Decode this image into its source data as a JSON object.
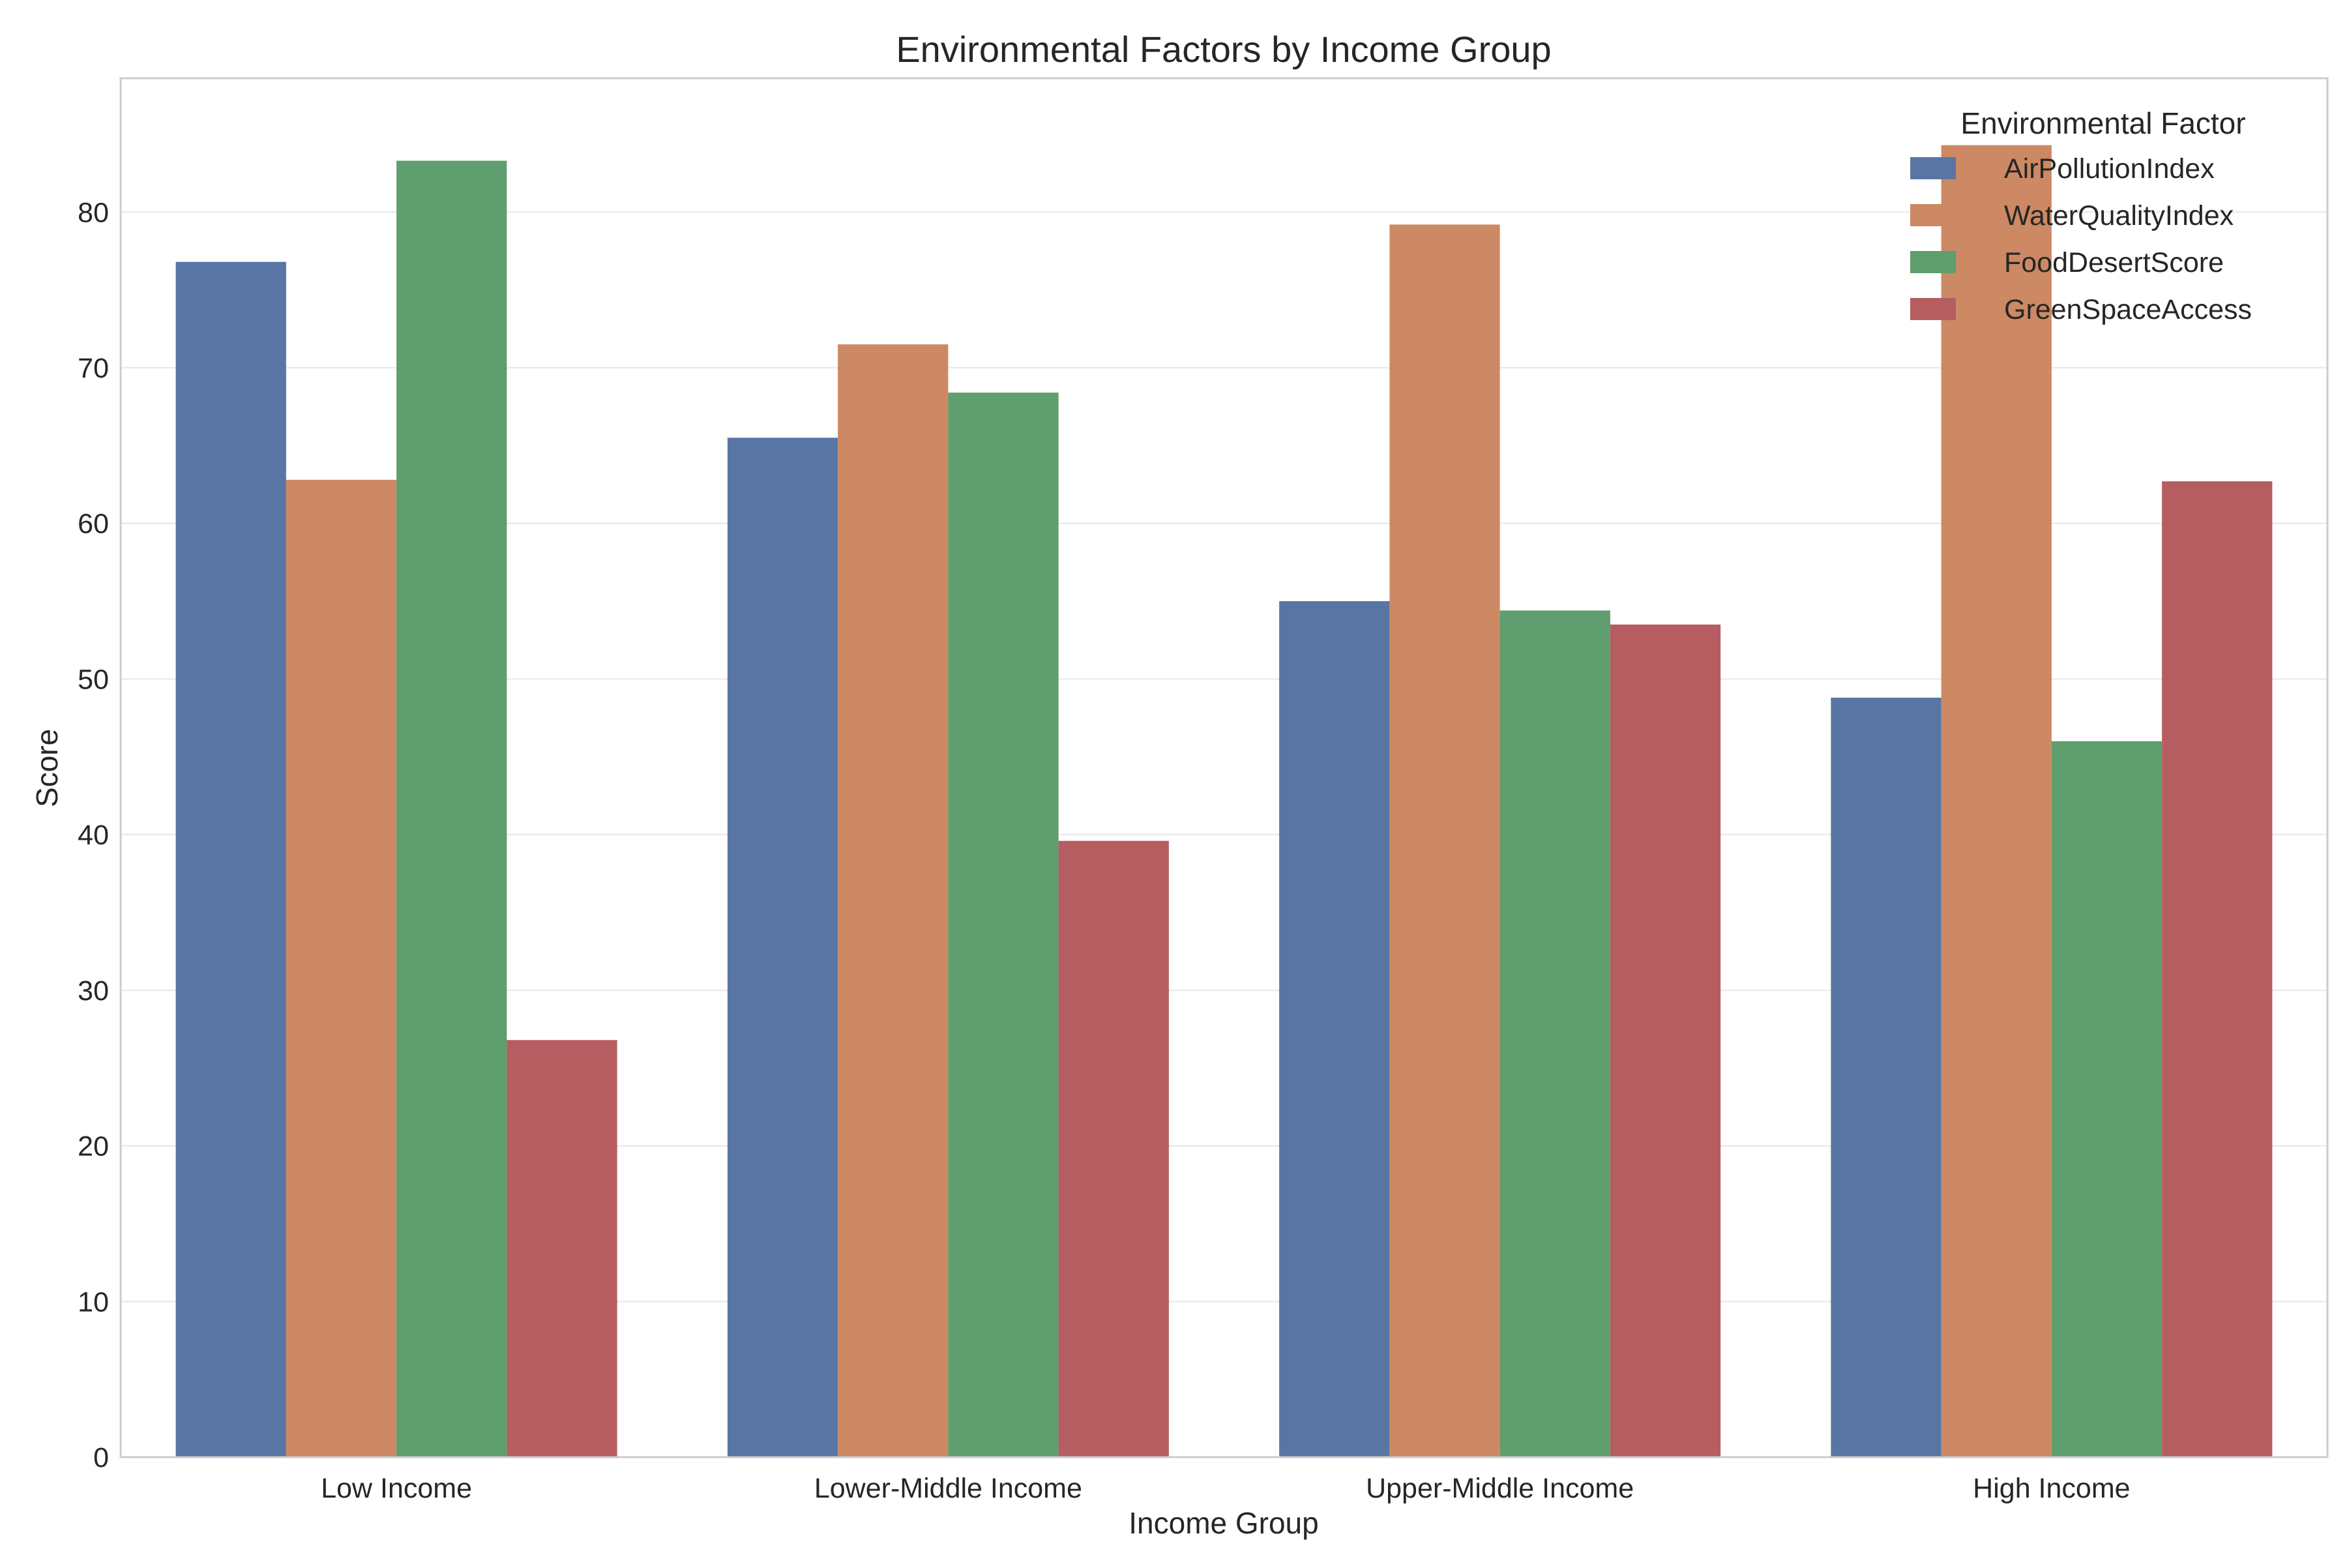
{
  "chart_data": {
    "type": "bar",
    "title": "Environmental Factors by Income Group",
    "xlabel": "Income Group",
    "ylabel": "Score",
    "categories": [
      "Low Income",
      "Lower-Middle Income",
      "Upper-Middle Income",
      "High Income"
    ],
    "series": [
      {
        "name": "AirPollutionIndex",
        "color": "#5975a4",
        "values": [
          76.8,
          65.5,
          55.0,
          48.8
        ]
      },
      {
        "name": "WaterQualityIndex",
        "color": "#cc8963",
        "values": [
          62.8,
          71.5,
          79.2,
          84.3
        ]
      },
      {
        "name": "FoodDesertScore",
        "color": "#5f9e6e",
        "values": [
          83.3,
          68.4,
          54.4,
          46.0
        ]
      },
      {
        "name": "GreenSpaceAccess",
        "color": "#b55d60",
        "values": [
          26.8,
          39.6,
          53.5,
          62.7
        ]
      }
    ],
    "ylim": [
      0,
      88.6
    ],
    "yticks": [
      0,
      10,
      20,
      30,
      40,
      50,
      60,
      70,
      80
    ],
    "grid": "horizontal",
    "legend": {
      "title": "Environmental Factor",
      "position": "top-right"
    }
  }
}
